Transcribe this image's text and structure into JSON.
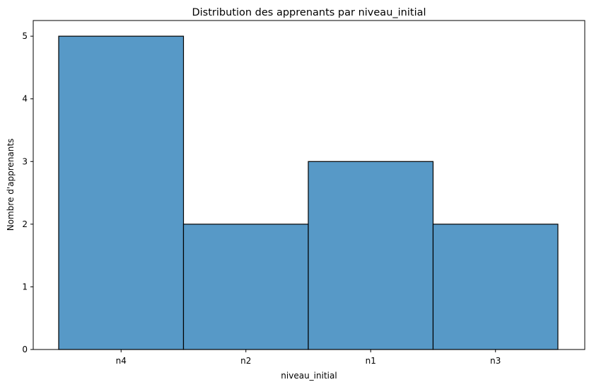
{
  "chart_data": {
    "type": "bar",
    "title": "Distribution des apprenants par niveau_initial",
    "xlabel": "niveau_initial",
    "ylabel": "Nombre d'apprenants",
    "categories": [
      "n4",
      "n2",
      "n1",
      "n3"
    ],
    "values": [
      5,
      2,
      3,
      2
    ],
    "ylim": [
      0,
      5.25
    ],
    "yticks": [
      "0",
      "1",
      "2",
      "3",
      "4",
      "5"
    ],
    "grid": false,
    "bar_color": "#5799c7",
    "edge_color": "#000000"
  }
}
